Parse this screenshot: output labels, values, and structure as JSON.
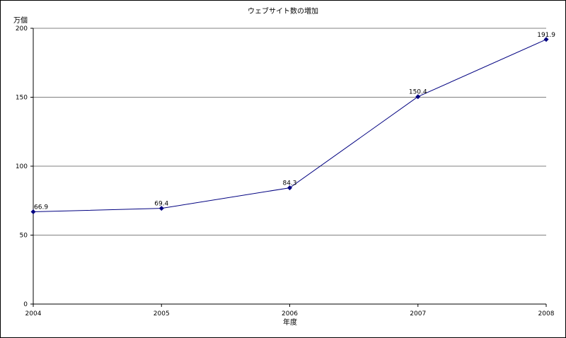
{
  "chart_data": {
    "type": "line",
    "title": "ウェブサイト数の増加",
    "ylabel": "万個",
    "xlabel": "年度",
    "categories": [
      "2004",
      "2005",
      "2006",
      "2007",
      "2008"
    ],
    "series": [
      {
        "values": [
          66.9,
          69.4,
          84.3,
          150.4,
          191.9
        ]
      }
    ],
    "ylim": [
      0,
      200
    ],
    "yticks": [
      0,
      50,
      100,
      150,
      200
    ],
    "grid": true,
    "data_labels": true,
    "colors": {
      "line": "#000080",
      "marker": "#000080",
      "grid": "#808080"
    }
  }
}
